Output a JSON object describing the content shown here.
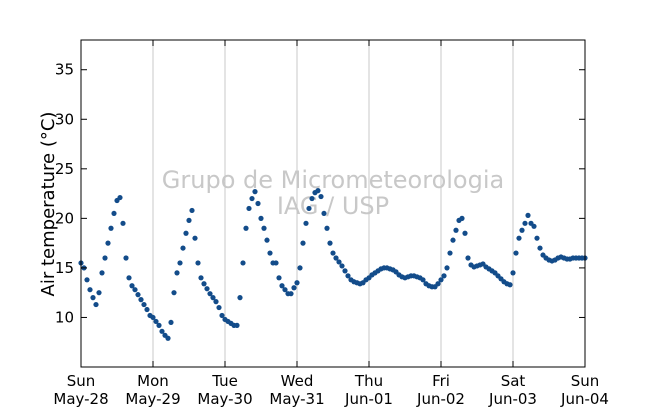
{
  "chart_data": {
    "type": "scatter",
    "title": "",
    "xlabel": "",
    "ylabel": "Air temperature (°C)",
    "ylim": [
      5,
      38
    ],
    "xlim": [
      "2017-05-28T00:00",
      "2017-06-04T00:00"
    ],
    "yticks": [
      10,
      15,
      20,
      25,
      30,
      35
    ],
    "xticks": [
      {
        "day": "Sun",
        "date": "May-28"
      },
      {
        "day": "Mon",
        "date": "May-29"
      },
      {
        "day": "Tue",
        "date": "May-30"
      },
      {
        "day": "Wed",
        "date": "May-31"
      },
      {
        "day": "Thu",
        "date": "Jun-01"
      },
      {
        "day": "Fri",
        "date": "Jun-02"
      },
      {
        "day": "Sat",
        "date": "Jun-03"
      },
      {
        "day": "Sun",
        "date": "Jun-04"
      }
    ],
    "grid": "vertical",
    "marker_color": "#134c8a",
    "series": [
      {
        "x": [
          "2017-05-28T00:00",
          "2017-05-28T01:00",
          "2017-05-28T02:00",
          "2017-05-28T03:00",
          "2017-05-28T04:00",
          "2017-05-28T05:00",
          "2017-05-28T06:00",
          "2017-05-28T07:00",
          "2017-05-28T08:00",
          "2017-05-28T09:00",
          "2017-05-28T10:00",
          "2017-05-28T11:00",
          "2017-05-28T12:00",
          "2017-05-28T13:00",
          "2017-05-28T14:00",
          "2017-05-28T15:00",
          "2017-05-28T16:00",
          "2017-05-28T17:00",
          "2017-05-28T18:00",
          "2017-05-28T19:00",
          "2017-05-28T20:00",
          "2017-05-28T21:00",
          "2017-05-28T22:00",
          "2017-05-28T23:00",
          "2017-05-29T00:00",
          "2017-05-29T01:00",
          "2017-05-29T02:00",
          "2017-05-29T03:00",
          "2017-05-29T04:00",
          "2017-05-29T05:00",
          "2017-05-29T06:00",
          "2017-05-29T07:00",
          "2017-05-29T08:00",
          "2017-05-29T09:00",
          "2017-05-29T10:00",
          "2017-05-29T11:00",
          "2017-05-29T12:00",
          "2017-05-29T13:00",
          "2017-05-29T14:00",
          "2017-05-29T15:00",
          "2017-05-29T16:00",
          "2017-05-29T17:00",
          "2017-05-29T18:00",
          "2017-05-29T19:00",
          "2017-05-29T20:00",
          "2017-05-29T21:00",
          "2017-05-29T22:00",
          "2017-05-29T23:00",
          "2017-05-30T00:00",
          "2017-05-30T01:00",
          "2017-05-30T02:00",
          "2017-05-30T03:00",
          "2017-05-30T04:00",
          "2017-05-30T05:00",
          "2017-05-30T06:00",
          "2017-05-30T07:00",
          "2017-05-30T08:00",
          "2017-05-30T09:00",
          "2017-05-30T10:00",
          "2017-05-30T11:00",
          "2017-05-30T12:00",
          "2017-05-30T13:00",
          "2017-05-30T14:00",
          "2017-05-30T15:00",
          "2017-05-30T16:00",
          "2017-05-30T17:00",
          "2017-05-30T18:00",
          "2017-05-30T19:00",
          "2017-05-30T20:00",
          "2017-05-30T21:00",
          "2017-05-30T22:00",
          "2017-05-30T23:00",
          "2017-05-31T00:00",
          "2017-05-31T01:00",
          "2017-05-31T02:00",
          "2017-05-31T03:00",
          "2017-05-31T04:00",
          "2017-05-31T05:00",
          "2017-05-31T06:00",
          "2017-05-31T07:00",
          "2017-05-31T08:00",
          "2017-05-31T09:00",
          "2017-05-31T10:00",
          "2017-05-31T11:00",
          "2017-05-31T12:00",
          "2017-05-31T13:00",
          "2017-05-31T14:00",
          "2017-05-31T15:00",
          "2017-05-31T16:00",
          "2017-05-31T17:00",
          "2017-05-31T18:00",
          "2017-05-31T19:00",
          "2017-05-31T20:00",
          "2017-05-31T21:00",
          "2017-05-31T22:00",
          "2017-05-31T23:00",
          "2017-06-01T00:00",
          "2017-06-01T01:00",
          "2017-06-01T02:00",
          "2017-06-01T03:00",
          "2017-06-01T04:00",
          "2017-06-01T05:00",
          "2017-06-01T06:00",
          "2017-06-01T07:00",
          "2017-06-01T08:00",
          "2017-06-01T09:00",
          "2017-06-01T10:00",
          "2017-06-01T11:00",
          "2017-06-01T12:00",
          "2017-06-01T13:00",
          "2017-06-01T14:00",
          "2017-06-01T15:00",
          "2017-06-01T16:00",
          "2017-06-01T17:00",
          "2017-06-01T18:00",
          "2017-06-01T19:00",
          "2017-06-01T20:00",
          "2017-06-01T21:00",
          "2017-06-01T22:00",
          "2017-06-01T23:00",
          "2017-06-02T00:00",
          "2017-06-02T01:00",
          "2017-06-02T02:00",
          "2017-06-02T03:00",
          "2017-06-02T04:00",
          "2017-06-02T05:00",
          "2017-06-02T06:00",
          "2017-06-02T07:00",
          "2017-06-02T08:00",
          "2017-06-02T09:00",
          "2017-06-02T10:00",
          "2017-06-02T11:00",
          "2017-06-02T12:00",
          "2017-06-02T13:00",
          "2017-06-02T14:00",
          "2017-06-02T15:00",
          "2017-06-02T16:00",
          "2017-06-02T17:00",
          "2017-06-02T18:00",
          "2017-06-02T19:00",
          "2017-06-02T20:00",
          "2017-06-02T21:00",
          "2017-06-02T22:00",
          "2017-06-02T23:00",
          "2017-06-03T00:00",
          "2017-06-03T01:00",
          "2017-06-03T02:00",
          "2017-06-03T03:00",
          "2017-06-03T04:00",
          "2017-06-03T05:00",
          "2017-06-03T06:00",
          "2017-06-03T07:00",
          "2017-06-03T08:00",
          "2017-06-03T09:00",
          "2017-06-03T10:00",
          "2017-06-03T11:00",
          "2017-06-03T12:00",
          "2017-06-03T13:00",
          "2017-06-03T14:00",
          "2017-06-03T15:00",
          "2017-06-03T16:00",
          "2017-06-03T17:00",
          "2017-06-03T18:00",
          "2017-06-03T19:00",
          "2017-06-03T20:00",
          "2017-06-03T21:00",
          "2017-06-03T22:00",
          "2017-06-03T23:00",
          "2017-06-04T00:00"
        ],
        "y": [
          15.5,
          15.0,
          13.8,
          12.8,
          12.0,
          11.3,
          12.5,
          14.5,
          16.0,
          17.5,
          19.0,
          20.5,
          21.8,
          22.1,
          19.5,
          16.0,
          14.0,
          13.2,
          12.8,
          12.3,
          11.8,
          11.3,
          10.8,
          10.2,
          10.0,
          9.6,
          9.2,
          8.6,
          8.2,
          7.9,
          9.5,
          12.5,
          14.5,
          15.5,
          17.0,
          18.5,
          19.8,
          20.8,
          18.0,
          15.5,
          14.0,
          13.4,
          12.9,
          12.4,
          12.0,
          11.6,
          11.0,
          10.2,
          9.8,
          9.6,
          9.4,
          9.2,
          9.2,
          12.0,
          15.5,
          19.0,
          21.0,
          22.0,
          22.7,
          21.5,
          20.0,
          19.0,
          17.8,
          16.5,
          15.5,
          15.5,
          14.0,
          13.2,
          12.8,
          12.4,
          12.4,
          13.0,
          13.5,
          15.0,
          17.5,
          19.5,
          21.0,
          22.0,
          22.6,
          22.8,
          22.2,
          20.5,
          19.0,
          17.5,
          16.5,
          16.0,
          15.6,
          15.2,
          14.7,
          14.2,
          13.8,
          13.6,
          13.5,
          13.4,
          13.5,
          13.8,
          14.0,
          14.3,
          14.5,
          14.7,
          14.9,
          15.0,
          15.0,
          14.9,
          14.8,
          14.6,
          14.3,
          14.1,
          14.0,
          14.1,
          14.2,
          14.2,
          14.1,
          14.0,
          13.8,
          13.4,
          13.2,
          13.1,
          13.1,
          13.4,
          13.8,
          14.2,
          15.0,
          16.5,
          17.8,
          18.8,
          19.8,
          20.0,
          18.5,
          16.0,
          15.3,
          15.1,
          15.2,
          15.3,
          15.4,
          15.1,
          14.9,
          14.7,
          14.5,
          14.2,
          13.9,
          13.6,
          13.4,
          13.3,
          14.5,
          16.5,
          18.0,
          18.8,
          19.5,
          20.3,
          19.5,
          19.2,
          18.0,
          17.0,
          16.3,
          16.0,
          15.8,
          15.7,
          15.8,
          16.0,
          16.1,
          16.0,
          15.9,
          15.9,
          16.0,
          16.0,
          16.0,
          16.0,
          16.0
        ]
      }
    ]
  },
  "watermark": {
    "line1": "Grupo de Micrometeorologia",
    "line2": "IAG / USP"
  }
}
